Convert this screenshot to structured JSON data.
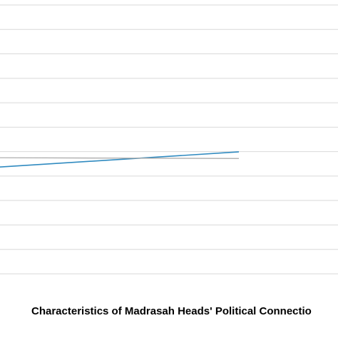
{
  "chart_data": {
    "type": "line",
    "title": "Characteristics of Madrasah Heads' Political Connectio",
    "x": [
      0,
      1
    ],
    "xlim": [
      0,
      1.415
    ],
    "series": [
      {
        "color": "#2f8ac0",
        "values": [
          4.37,
          4.99
        ]
      },
      {
        "color": "#a6a6a6",
        "values": [
          4.75,
          4.72
        ]
      }
    ],
    "ylim": [
      0,
      11
    ],
    "yticks": [
      0,
      1,
      2,
      3,
      4,
      5,
      6,
      7,
      8,
      9,
      10,
      11
    ],
    "grid": true
  }
}
